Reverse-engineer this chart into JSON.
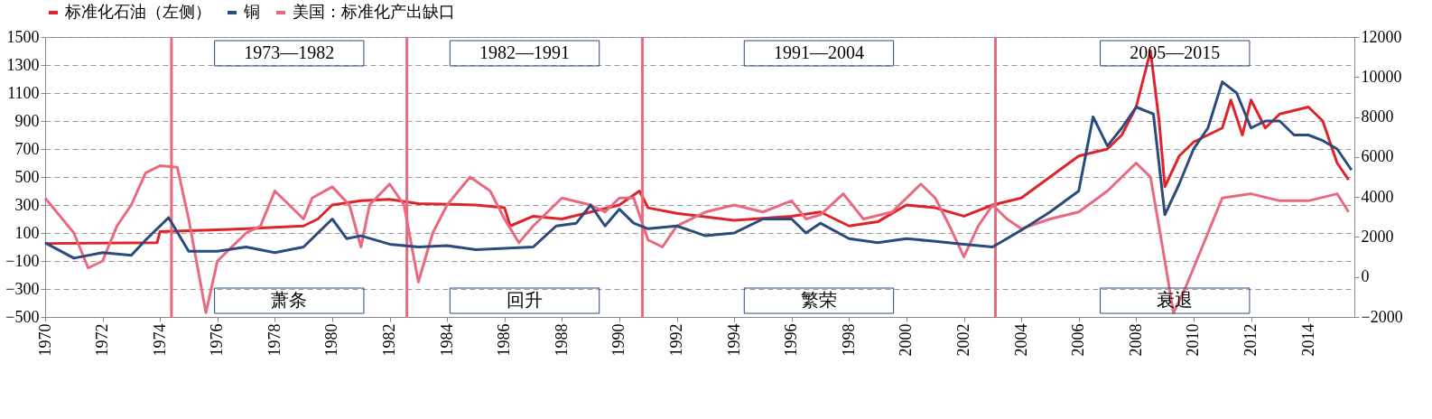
{
  "chart_data": {
    "type": "line",
    "xlim": [
      1970,
      2015.6
    ],
    "xticks": [
      1970,
      1972,
      1974,
      1976,
      1978,
      1980,
      1982,
      1984,
      1986,
      1988,
      1990,
      1992,
      1994,
      1996,
      1998,
      2000,
      2002,
      2004,
      2006,
      2008,
      2010,
      2012,
      2014
    ],
    "ylim": [
      -500,
      1500
    ],
    "yticks": [
      -500,
      -300,
      -100,
      100,
      300,
      500,
      700,
      900,
      1100,
      1300,
      1500
    ],
    "y2lim": [
      -2000,
      12000
    ],
    "y2ticks": [
      -2000,
      0,
      2000,
      4000,
      6000,
      8000,
      10000,
      12000
    ],
    "grid": "y",
    "legend": "top",
    "line_style": "solid",
    "marker": "none",
    "series": [
      {
        "name": "标准化石油（左侧）",
        "color": "#e0232a",
        "x": [
          1970,
          1973.9,
          1974.0,
          1977,
          1979,
          1979.5,
          1980,
          1981,
          1982,
          1983,
          1985,
          1986,
          1986.2,
          1987,
          1988,
          1989,
          1990,
          1990.7,
          1991,
          1992,
          1994,
          1996,
          1997,
          1998,
          1999,
          2000,
          2001,
          2002,
          2003,
          2004,
          2005,
          2006,
          2007,
          2007.5,
          2008,
          2008.5,
          2008.8,
          2009,
          2009.5,
          2010,
          2011,
          2011.3,
          2011.7,
          2012,
          2012.5,
          2013,
          2014,
          2014.5,
          2015,
          2015.4
        ],
        "values": [
          25,
          30,
          110,
          130,
          150,
          200,
          300,
          330,
          340,
          310,
          300,
          280,
          150,
          220,
          200,
          250,
          300,
          400,
          280,
          240,
          190,
          220,
          250,
          150,
          180,
          300,
          280,
          220,
          300,
          350,
          500,
          650,
          700,
          800,
          1000,
          1400,
          900,
          430,
          650,
          750,
          850,
          1050,
          800,
          1050,
          850,
          950,
          1000,
          900,
          600,
          480
        ]
      },
      {
        "name": "铜",
        "color": "#2b4a7d",
        "axis": "y2",
        "x": [
          1970,
          1971,
          1972,
          1973,
          1973.5,
          1974.3,
          1975,
          1976,
          1977,
          1978,
          1979,
          1980,
          1980.5,
          1981,
          1982,
          1983,
          1984,
          1985,
          1986,
          1987,
          1987.8,
          1988.5,
          1989,
          1989.5,
          1990,
          1990.5,
          1991,
          1992,
          1993,
          1994,
          1995,
          1996,
          1996.5,
          1997,
          1998,
          1999,
          2000,
          2001,
          2002,
          2003,
          2004,
          2005,
          2006,
          2006.5,
          2007,
          2007.5,
          2008,
          2008.6,
          2009,
          2009.5,
          2010,
          2010.5,
          2011,
          2011.5,
          2012,
          2012.5,
          2013,
          2013.5,
          2014,
          2014.5,
          2015,
          2015.5
        ],
        "values": [
          1710,
          940,
          1220,
          1080,
          1850,
          2970,
          1290,
          1290,
          1500,
          1220,
          1500,
          2900,
          1920,
          2060,
          1640,
          1500,
          1570,
          1360,
          1430,
          1500,
          2550,
          2690,
          3600,
          2550,
          3390,
          2690,
          2410,
          2550,
          2060,
          2200,
          2900,
          2900,
          2200,
          2690,
          1920,
          1710,
          1920,
          1780,
          1640,
          1500,
          2340,
          3250,
          4300,
          8010,
          6550,
          7450,
          8500,
          8150,
          3110,
          4650,
          6400,
          7450,
          9760,
          9200,
          7450,
          7800,
          7800,
          7100,
          7100,
          6820,
          6400,
          5350
        ]
      },
      {
        "name": "美国：标准化产出缺口",
        "color": "#e9697f",
        "x": [
          1970,
          1971,
          1971.5,
          1972,
          1972.5,
          1973,
          1973.5,
          1974,
          1974.6,
          1975,
          1975.6,
          1976,
          1977,
          1977.5,
          1978,
          1979,
          1979.3,
          1980,
          1980.6,
          1981,
          1981.3,
          1982,
          1982.5,
          1983,
          1983.5,
          1984,
          1984.8,
          1985.5,
          1986,
          1986.5,
          1987,
          1988,
          1989,
          1989.5,
          1990,
          1990.5,
          1991,
          1991.5,
          1992,
          1993,
          1994,
          1995,
          1996,
          1996.5,
          1997,
          1997.8,
          1998.5,
          1999.5,
          2000.5,
          2001,
          2001.5,
          2002,
          2002.5,
          2003,
          2003.5,
          2004,
          2005,
          2006,
          2007,
          2008,
          2008.5,
          2009,
          2009.3,
          2009.7,
          2010.5,
          2011,
          2012,
          2013,
          2014,
          2015,
          2015.4
        ],
        "values": [
          350,
          100,
          -150,
          -100,
          150,
          300,
          530,
          580,
          570,
          200,
          -470,
          -100,
          100,
          150,
          400,
          200,
          350,
          430,
          300,
          0,
          300,
          450,
          300,
          -250,
          100,
          300,
          500,
          400,
          200,
          30,
          150,
          350,
          300,
          250,
          350,
          350,
          50,
          0,
          150,
          250,
          300,
          250,
          330,
          200,
          230,
          380,
          200,
          250,
          450,
          350,
          150,
          -70,
          150,
          300,
          200,
          130,
          200,
          250,
          400,
          600,
          500,
          -100,
          -470,
          -300,
          100,
          350,
          380,
          330,
          330,
          380,
          250
        ]
      }
    ],
    "ref_lines": [
      {
        "axis": "x",
        "value": 1974.4,
        "color": "#e9697f"
      },
      {
        "axis": "x",
        "value": 1982.6,
        "color": "#e9697f"
      },
      {
        "axis": "x",
        "value": 1990.8,
        "color": "#e9697f"
      },
      {
        "axis": "x",
        "value": 2003.1,
        "color": "#e9697f"
      }
    ],
    "annotations": [
      "1973—1982",
      "1982—1991",
      "1991—2004",
      "2005—2015",
      "萧条",
      "回升",
      "繁荣",
      "衰退"
    ]
  }
}
